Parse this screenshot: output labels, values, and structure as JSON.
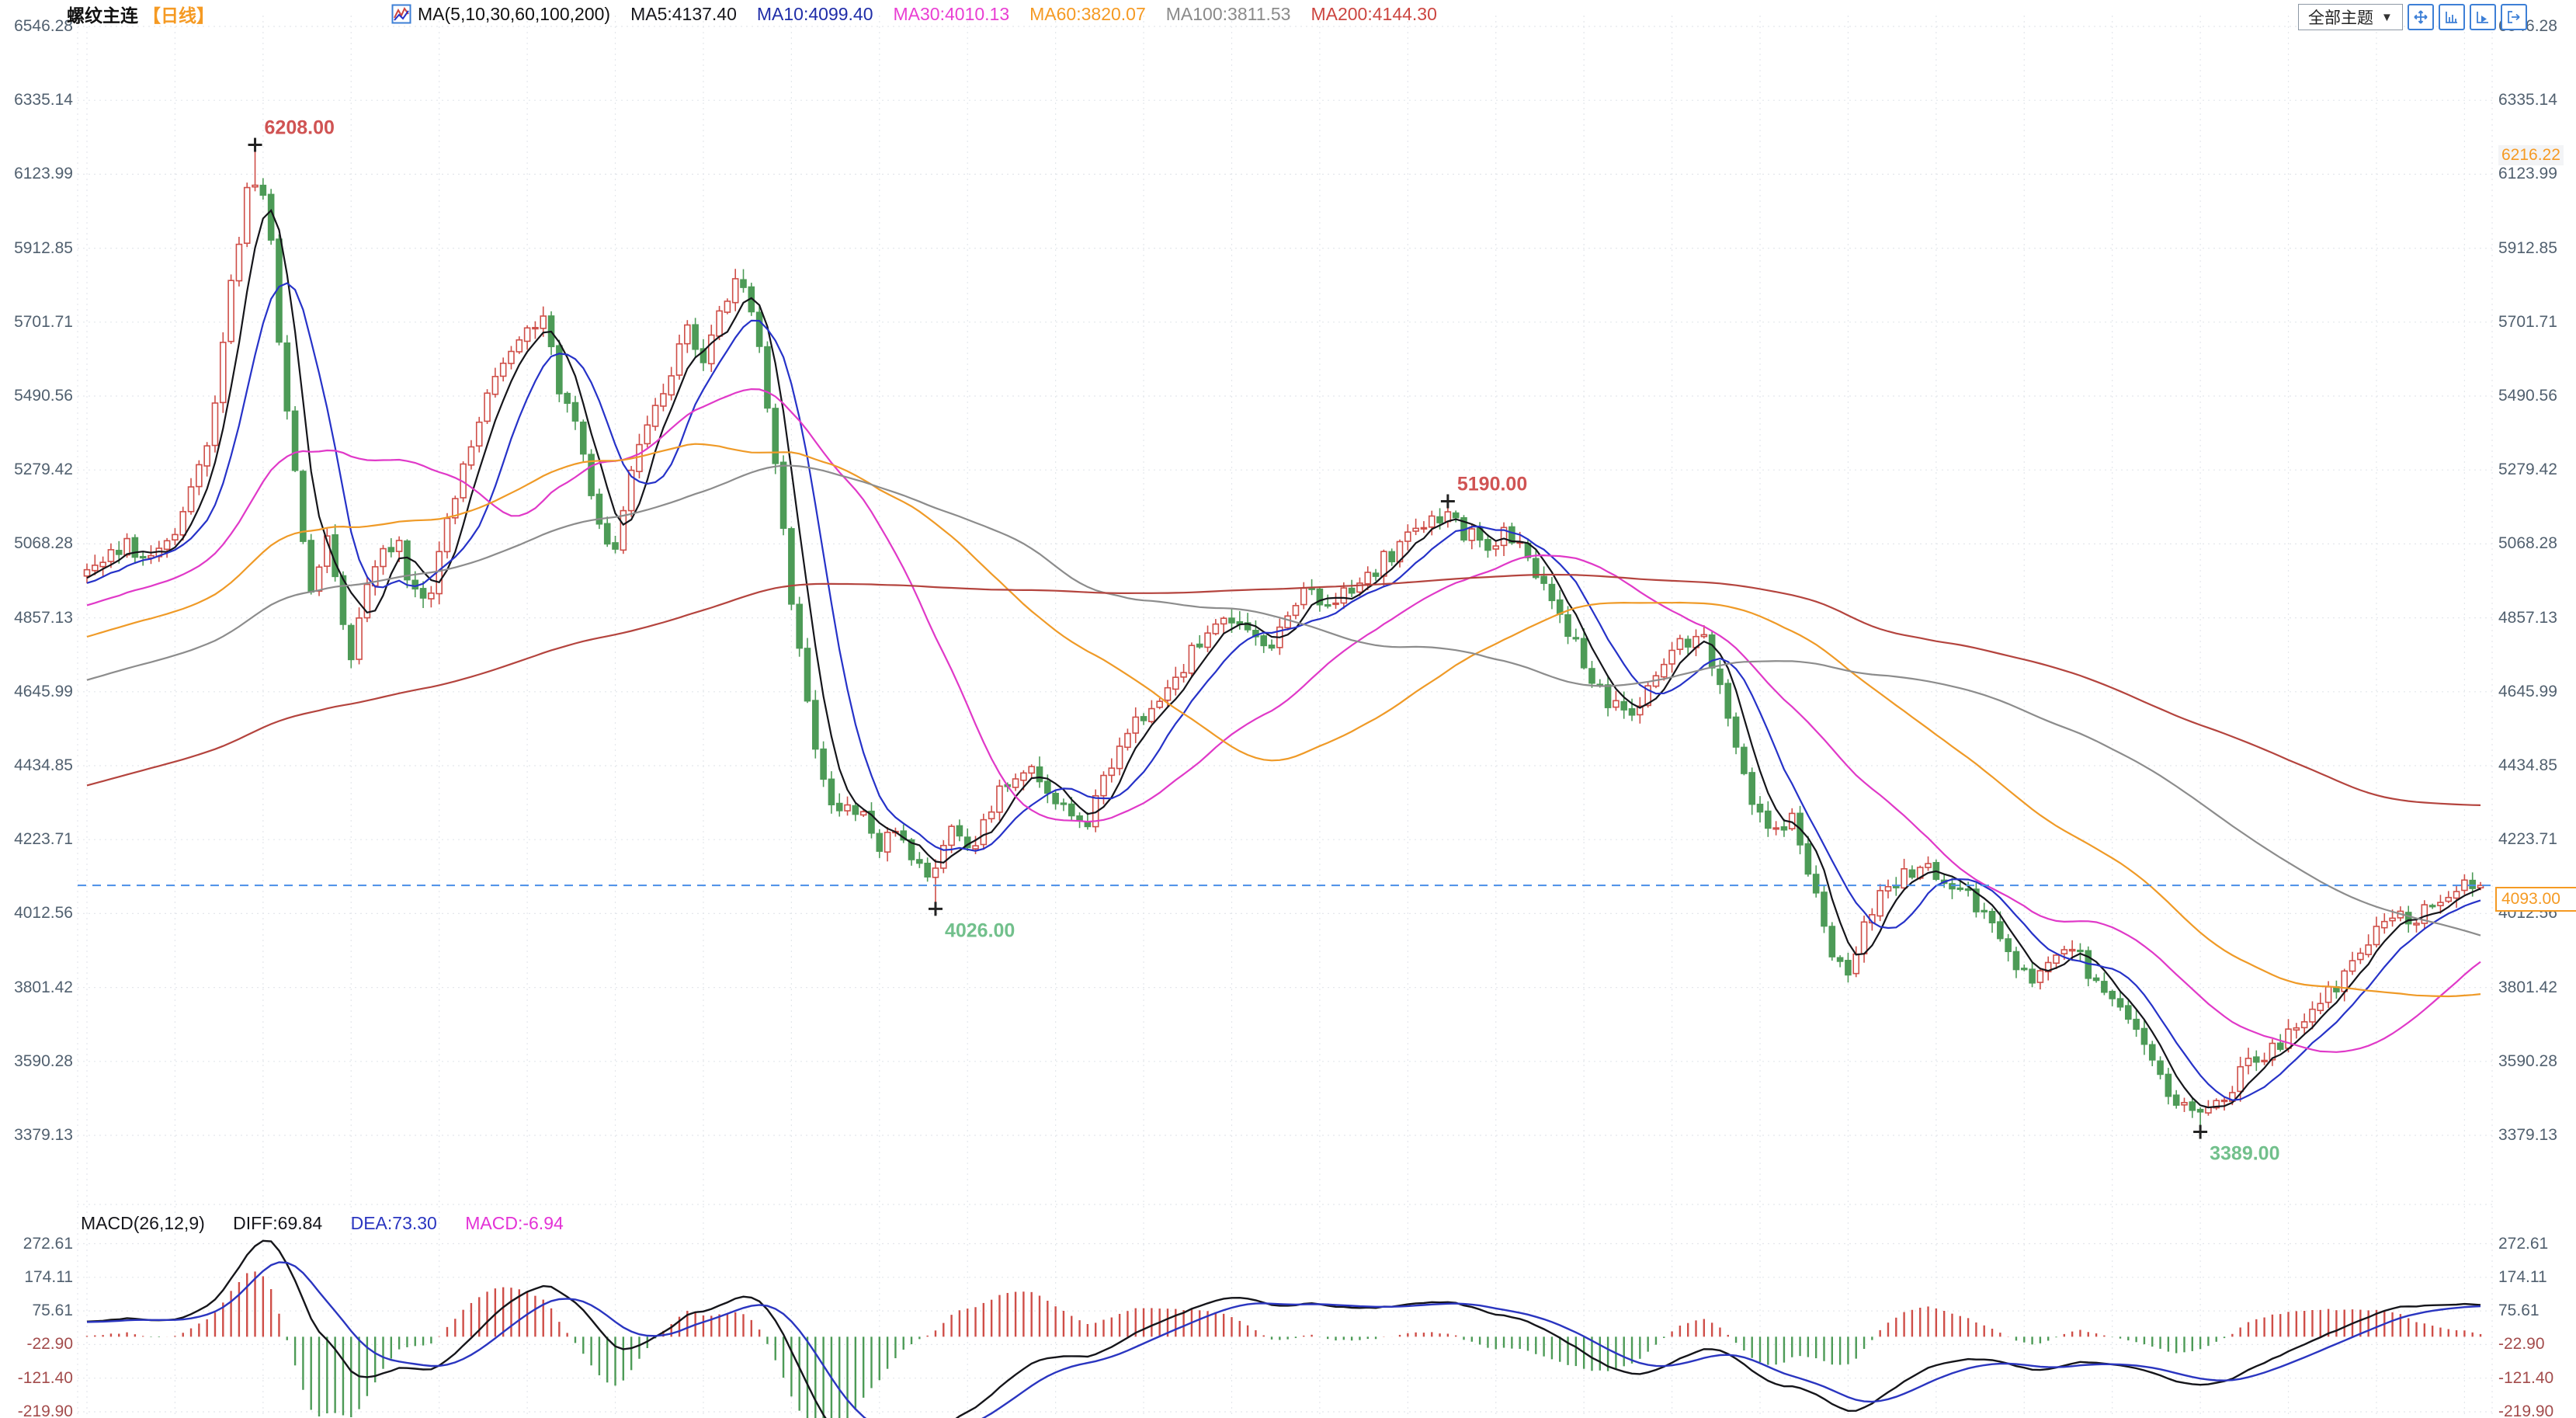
{
  "header": {
    "title": "螺纹主连",
    "period": "【日线】",
    "ma_settings": "MA(5,10,30,60,100,200)",
    "ma5": "MA5:4137.40",
    "ma10": "MA10:4099.40",
    "ma30": "MA30:4010.13",
    "ma60": "MA60:3820.07",
    "ma100": "MA100:3811.53",
    "ma200": "MA200:4144.30"
  },
  "toolbar": {
    "theme_label": "全部主题",
    "caret": "▼",
    "icons": [
      "pan-icon",
      "axis-scale-icon",
      "axis-play-icon",
      "export-icon"
    ]
  },
  "price_axis": {
    "labels": [
      "6546.28",
      "6335.14",
      "6123.99",
      "5912.85",
      "5701.71",
      "5490.56",
      "5279.42",
      "5068.28",
      "4857.13",
      "4645.99",
      "4434.85",
      "4223.71",
      "4012.56",
      "3801.42",
      "3590.28",
      "3379.13"
    ],
    "high_marker": "6216.22",
    "current_price": "4093.00"
  },
  "macd_panel": {
    "name": "MACD(26,12,9)",
    "diff": "DIFF:69.84",
    "dea": "DEA:73.30",
    "macd": "MACD:-6.94",
    "axis_labels": [
      "272.61",
      "174.11",
      "75.61",
      "-22.90",
      "-121.40",
      "-219.90"
    ]
  },
  "chart_data": {
    "type": "candlestick",
    "title": "螺纹主连 daily candlestick with MA(5,10,30,60,100,200) and MACD(26,12,9)",
    "n_candles": 300,
    "axis": {
      "price_top": 6546.28,
      "price_bottom": 3379.13,
      "macd_top": 272.61,
      "macd_bottom": -219.9
    },
    "current_price": 4093,
    "session_high_marker": 6216.22,
    "ma_periods": [
      5,
      10,
      30,
      60,
      100,
      200
    ],
    "ma_latest": {
      "ma5": 4137.4,
      "ma10": 4099.4,
      "ma30": 4010.13,
      "ma60": 3820.07,
      "ma100": 3811.53,
      "ma200": 4144.3
    },
    "macd_latest": {
      "diff": 69.84,
      "dea": 73.3,
      "hist": -6.94
    },
    "key_points": [
      {
        "t": 0.071,
        "price": 6208,
        "label": "6208.00",
        "kind": "high"
      },
      {
        "t": 0.57,
        "price": 5190,
        "label": "5190.00",
        "kind": "high"
      },
      {
        "t": 0.353,
        "price": 4026,
        "label": "4026.00",
        "kind": "low"
      },
      {
        "t": 0.883,
        "price": 3389,
        "label": "3389.00",
        "kind": "low"
      }
    ],
    "price_anchors": [
      [
        0.0,
        4980
      ],
      [
        0.016,
        5060
      ],
      [
        0.03,
        5030
      ],
      [
        0.04,
        5150
      ],
      [
        0.052,
        5400
      ],
      [
        0.061,
        5850
      ],
      [
        0.066,
        6050
      ],
      [
        0.071,
        6120
      ],
      [
        0.076,
        5980
      ],
      [
        0.081,
        5620
      ],
      [
        0.087,
        5280
      ],
      [
        0.094,
        4900
      ],
      [
        0.1,
        5080
      ],
      [
        0.105,
        4900
      ],
      [
        0.11,
        4750
      ],
      [
        0.116,
        4900
      ],
      [
        0.122,
        5050
      ],
      [
        0.129,
        5080
      ],
      [
        0.136,
        4950
      ],
      [
        0.142,
        4880
      ],
      [
        0.149,
        5100
      ],
      [
        0.157,
        5300
      ],
      [
        0.165,
        5450
      ],
      [
        0.173,
        5600
      ],
      [
        0.181,
        5680
      ],
      [
        0.19,
        5720
      ],
      [
        0.198,
        5500
      ],
      [
        0.206,
        5380
      ],
      [
        0.213,
        5150
      ],
      [
        0.22,
        5060
      ],
      [
        0.227,
        5250
      ],
      [
        0.235,
        5420
      ],
      [
        0.243,
        5550
      ],
      [
        0.25,
        5680
      ],
      [
        0.259,
        5600
      ],
      [
        0.267,
        5780
      ],
      [
        0.275,
        5820
      ],
      [
        0.282,
        5600
      ],
      [
        0.288,
        5250
      ],
      [
        0.293,
        4980
      ],
      [
        0.299,
        4700
      ],
      [
        0.306,
        4450
      ],
      [
        0.314,
        4280
      ],
      [
        0.322,
        4320
      ],
      [
        0.33,
        4180
      ],
      [
        0.338,
        4260
      ],
      [
        0.346,
        4160
      ],
      [
        0.353,
        4090
      ],
      [
        0.361,
        4280
      ],
      [
        0.369,
        4210
      ],
      [
        0.377,
        4290
      ],
      [
        0.385,
        4400
      ],
      [
        0.394,
        4420
      ],
      [
        0.402,
        4350
      ],
      [
        0.41,
        4300
      ],
      [
        0.418,
        4280
      ],
      [
        0.427,
        4420
      ],
      [
        0.436,
        4550
      ],
      [
        0.446,
        4620
      ],
      [
        0.456,
        4700
      ],
      [
        0.467,
        4800
      ],
      [
        0.476,
        4880
      ],
      [
        0.484,
        4800
      ],
      [
        0.493,
        4760
      ],
      [
        0.501,
        4850
      ],
      [
        0.51,
        4950
      ],
      [
        0.519,
        4900
      ],
      [
        0.528,
        4950
      ],
      [
        0.538,
        5000
      ],
      [
        0.548,
        5060
      ],
      [
        0.557,
        5120
      ],
      [
        0.567,
        5150
      ],
      [
        0.575,
        5100
      ],
      [
        0.584,
        5060
      ],
      [
        0.593,
        5100
      ],
      [
        0.602,
        5020
      ],
      [
        0.611,
        4900
      ],
      [
        0.62,
        4800
      ],
      [
        0.628,
        4700
      ],
      [
        0.637,
        4600
      ],
      [
        0.646,
        4580
      ],
      [
        0.655,
        4680
      ],
      [
        0.664,
        4780
      ],
      [
        0.673,
        4820
      ],
      [
        0.682,
        4700
      ],
      [
        0.689,
        4500
      ],
      [
        0.697,
        4300
      ],
      [
        0.706,
        4250
      ],
      [
        0.713,
        4280
      ],
      [
        0.719,
        4150
      ],
      [
        0.727,
        3920
      ],
      [
        0.735,
        3830
      ],
      [
        0.743,
        3980
      ],
      [
        0.751,
        4080
      ],
      [
        0.76,
        4130
      ],
      [
        0.769,
        4150
      ],
      [
        0.778,
        4090
      ],
      [
        0.787,
        4050
      ],
      [
        0.796,
        3960
      ],
      [
        0.805,
        3850
      ],
      [
        0.813,
        3820
      ],
      [
        0.821,
        3880
      ],
      [
        0.83,
        3900
      ],
      [
        0.838,
        3840
      ],
      [
        0.847,
        3760
      ],
      [
        0.856,
        3660
      ],
      [
        0.865,
        3540
      ],
      [
        0.874,
        3460
      ],
      [
        0.883,
        3420
      ],
      [
        0.892,
        3480
      ],
      [
        0.901,
        3560
      ],
      [
        0.91,
        3620
      ],
      [
        0.919,
        3660
      ],
      [
        0.928,
        3700
      ],
      [
        0.937,
        3780
      ],
      [
        0.946,
        3870
      ],
      [
        0.955,
        3940
      ],
      [
        0.964,
        3990
      ],
      [
        0.973,
        4010
      ],
      [
        0.982,
        4050
      ],
      [
        0.991,
        4080
      ],
      [
        1.0,
        4093
      ]
    ],
    "colors": {
      "up": "#cf4e48",
      "down": "#4d9b57",
      "grid": "#e4e7ec",
      "ma5": "#15151a",
      "ma10": "#2632c8",
      "ma30": "#e039c8",
      "ma60": "#ef9a27",
      "ma100": "#8c8c8c",
      "ma200": "#b4443e",
      "price_line": "#4a8fe8",
      "diff_line": "#15151a",
      "dea_line": "#2a35c0",
      "annotation_high": "#d05353",
      "annotation_low": "#72c08c",
      "marker": "#222222"
    }
  }
}
